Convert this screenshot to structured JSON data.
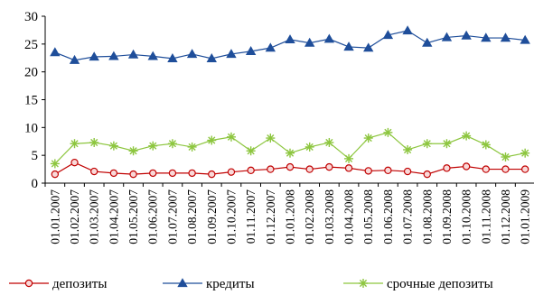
{
  "chart_data": {
    "type": "line",
    "title": "",
    "xlabel": "",
    "ylabel": "",
    "ylim": [
      0,
      30
    ],
    "yticks": [
      "0",
      "5",
      "10",
      "15",
      "20",
      "25",
      "30"
    ],
    "grid": false,
    "legend_position": "bottom",
    "categories": [
      "01.01.2007",
      "01.02.2007",
      "01.03.2007",
      "01.04.2007",
      "01.05.2007",
      "01.06.2007",
      "01.07.2007",
      "01.08.2007",
      "01.09.2007",
      "01.10.2007",
      "01.11.2007",
      "01.12.2007",
      "01.01.2008",
      "01.02.2008",
      "01.03.2008",
      "01.04.2008",
      "01.05.2008",
      "01.06.2008",
      "01.07.2008",
      "01.08.2008",
      "01.09.2008",
      "01.10.2008",
      "01.11.2008",
      "01.12.2008",
      "01.01.2009"
    ],
    "series": [
      {
        "name": "депозиты",
        "color": "#C00000",
        "marker": "circle",
        "values": [
          1.6,
          3.7,
          2.1,
          1.8,
          1.6,
          1.8,
          1.8,
          1.8,
          1.6,
          2.0,
          2.3,
          2.5,
          2.9,
          2.5,
          2.9,
          2.7,
          2.2,
          2.3,
          2.1,
          1.6,
          2.7,
          3.0,
          2.5,
          2.5,
          2.5
        ]
      },
      {
        "name": "кредиты",
        "color": "#1F4E9A",
        "marker": "triangle",
        "values": [
          23.5,
          22.1,
          22.7,
          22.8,
          23.1,
          22.8,
          22.4,
          23.2,
          22.4,
          23.2,
          23.7,
          24.3,
          25.8,
          25.2,
          25.9,
          24.5,
          24.3,
          26.6,
          27.4,
          25.2,
          26.2,
          26.5,
          26.1,
          26.1,
          25.7
        ]
      },
      {
        "name": "срочные депозиты",
        "color": "#8DC63F",
        "marker": "star",
        "values": [
          3.5,
          7.1,
          7.3,
          6.7,
          5.8,
          6.7,
          7.1,
          6.5,
          7.7,
          8.3,
          5.8,
          8.1,
          5.4,
          6.5,
          7.3,
          4.4,
          8.1,
          9.1,
          6.0,
          7.1,
          7.1,
          8.5,
          6.9,
          4.7,
          5.4
        ]
      }
    ]
  }
}
